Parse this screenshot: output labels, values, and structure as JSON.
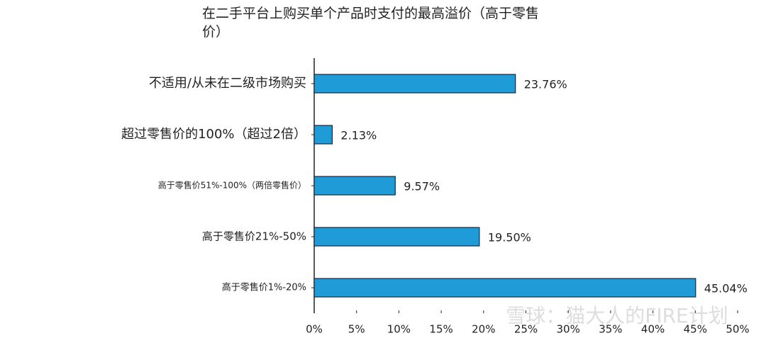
{
  "chart_data": {
    "type": "bar",
    "orientation": "horizontal",
    "title": "在二手平台上购买单个产品时支付的最高溢价（高于零售价）",
    "categories": [
      "不适用/从未在二级市场购买",
      "超过零售价的100%（超过2倍）",
      "高于零售价51%-100%（两倍零售价）",
      "高于零售价21%-50%",
      "高于零售价1%-20%"
    ],
    "values": [
      23.76,
      2.13,
      9.57,
      19.5,
      45.04
    ],
    "value_labels": [
      "23.76%",
      "2.13%",
      "9.57%",
      "19.50%",
      "45.04%"
    ],
    "color": "#1f9bd7",
    "xlim": [
      0,
      50
    ],
    "xticks": [
      {
        "value": 0,
        "label": "0%"
      },
      {
        "value": 5,
        "label": "5%"
      },
      {
        "value": 10,
        "label": "10%"
      },
      {
        "value": 15,
        "label": "15%"
      },
      {
        "value": 20,
        "label": "20%"
      },
      {
        "value": 25,
        "label": "25%"
      },
      {
        "value": 30,
        "label": "30%"
      },
      {
        "value": 35,
        "label": "35%"
      },
      {
        "value": 40,
        "label": "40%"
      },
      {
        "value": 45,
        "label": "45%"
      },
      {
        "value": 50,
        "label": "50%"
      }
    ],
    "watermark": "雪球：猫大人的FIRE计划"
  }
}
